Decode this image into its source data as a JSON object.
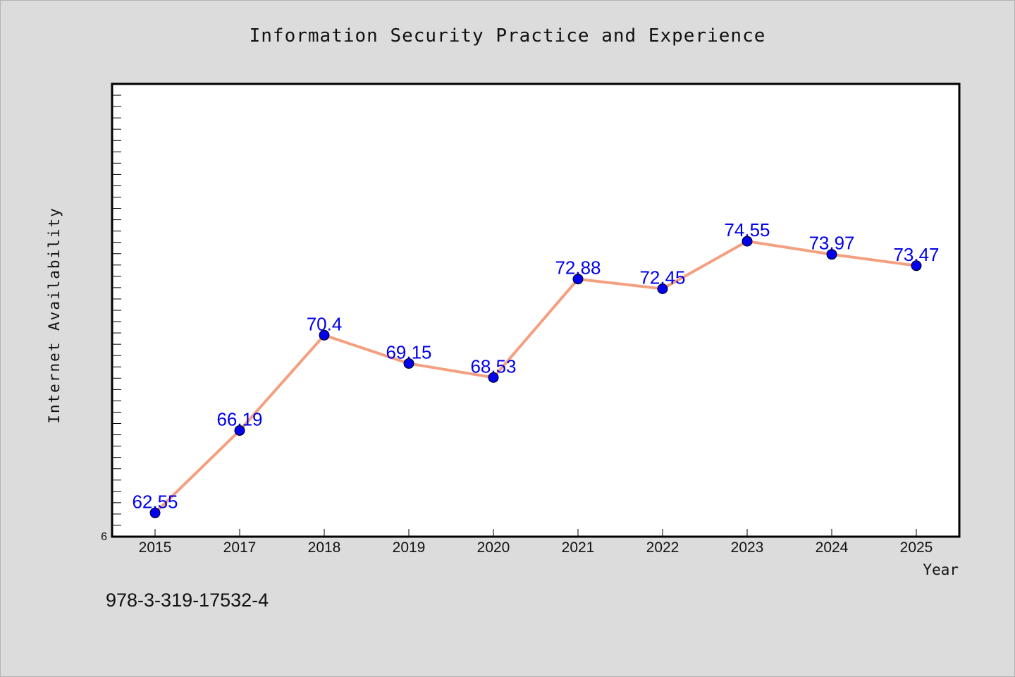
{
  "chart_data": {
    "type": "line",
    "title": "Information Security Practice and Experience",
    "xlabel": "Year",
    "ylabel": "Internet Availability",
    "categories": [
      "2015",
      "2017",
      "2018",
      "2019",
      "2020",
      "2021",
      "2022",
      "2023",
      "2024",
      "2025"
    ],
    "series": [
      {
        "values": [
          62.55,
          66.19,
          70.4,
          69.15,
          68.53,
          72.88,
          72.45,
          74.55,
          73.97,
          73.47
        ],
        "labels": [
          "62.55",
          "66.19",
          "70.4",
          "69.15",
          "68.53",
          "72.88",
          "72.45",
          "74.55",
          "73.97",
          "73.47"
        ],
        "line_color": "#f4a080",
        "marker_color": "#0000ee",
        "label_color": "#0000ee"
      }
    ],
    "ylim": [
      61.5,
      81.5
    ],
    "y_tick_label": "6",
    "grid": false,
    "legend": "none"
  },
  "footer": {
    "isbn": "978-3-319-17532-4"
  }
}
